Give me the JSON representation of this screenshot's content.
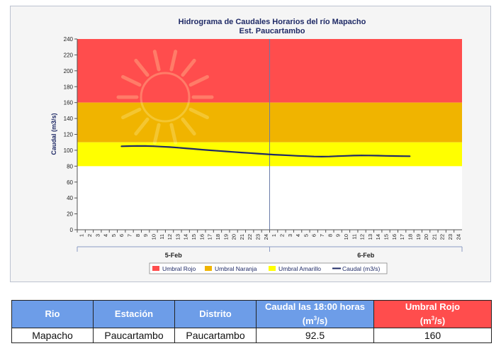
{
  "chart_data": {
    "type": "line",
    "title": "Hidrograma de Caudales Horarios del río Mapacho",
    "subtitle": "Est. Paucartambo",
    "ylabel": "Caudal  (m3/s)",
    "ylim": [
      0,
      240
    ],
    "yticks": [
      "0",
      "20",
      "40",
      "60",
      "80",
      "100",
      "120",
      "140",
      "160",
      "180",
      "200",
      "220",
      "240"
    ],
    "x_hour_labels": [
      "1",
      "2",
      "3",
      "4",
      "5",
      "6",
      "7",
      "8",
      "9",
      "10",
      "11",
      "12",
      "13",
      "14",
      "15",
      "16",
      "17",
      "18",
      "19",
      "20",
      "21",
      "22",
      "23",
      "24",
      "1",
      "2",
      "3",
      "4",
      "5",
      "6",
      "7",
      "8",
      "9",
      "10",
      "11",
      "12",
      "13",
      "14",
      "15",
      "16",
      "17",
      "18",
      "19",
      "20",
      "21",
      "22",
      "23",
      "24"
    ],
    "day_labels": [
      "5-Feb",
      "6-Feb"
    ],
    "bands": [
      {
        "name": "Umbral Rojo",
        "from": 160,
        "to": 240,
        "color": "#ff4d4d"
      },
      {
        "name": "Umbral Naranja",
        "from": 110,
        "to": 160,
        "color": "#f0b400"
      },
      {
        "name": "Umbral Amarillo",
        "from": 80,
        "to": 110,
        "color": "#ffff00"
      }
    ],
    "series": [
      {
        "name": "Caudal (m3/s)",
        "color": "#1f2a66",
        "start_index": 5,
        "values": [
          105,
          105.3,
          105.5,
          105.4,
          105.1,
          104.6,
          104,
          103.3,
          102.5,
          101.7,
          100.8,
          100,
          99.3,
          98.6,
          97.9,
          97.2,
          96.5,
          95.8,
          95.1,
          94.5,
          94,
          93.5,
          93,
          92.6,
          92.2,
          92,
          92.2,
          92.6,
          93,
          93.3,
          93.5,
          93.4,
          93.2,
          93,
          92.8,
          92.6,
          92.5
        ]
      }
    ],
    "legend": [
      "Umbral Rojo",
      "Umbral Naranja",
      "Umbral Amarillo",
      "Caudal (m3/s)"
    ],
    "legend_position": "bottom",
    "grid": false
  },
  "table": {
    "headers": [
      "Rio",
      "Estación",
      "Distrito",
      "Caudal las 18:00 horas",
      "Umbral Rojo"
    ],
    "units": [
      "(m",
      "3",
      "/s)"
    ],
    "row": [
      "Mapacho",
      "Paucartambo",
      "Paucartambo",
      "92.5",
      "160"
    ]
  },
  "colors": {
    "header_blue": "#6d9de8",
    "header_red": "#ff4d4d",
    "title_navy": "#1f2a66"
  }
}
